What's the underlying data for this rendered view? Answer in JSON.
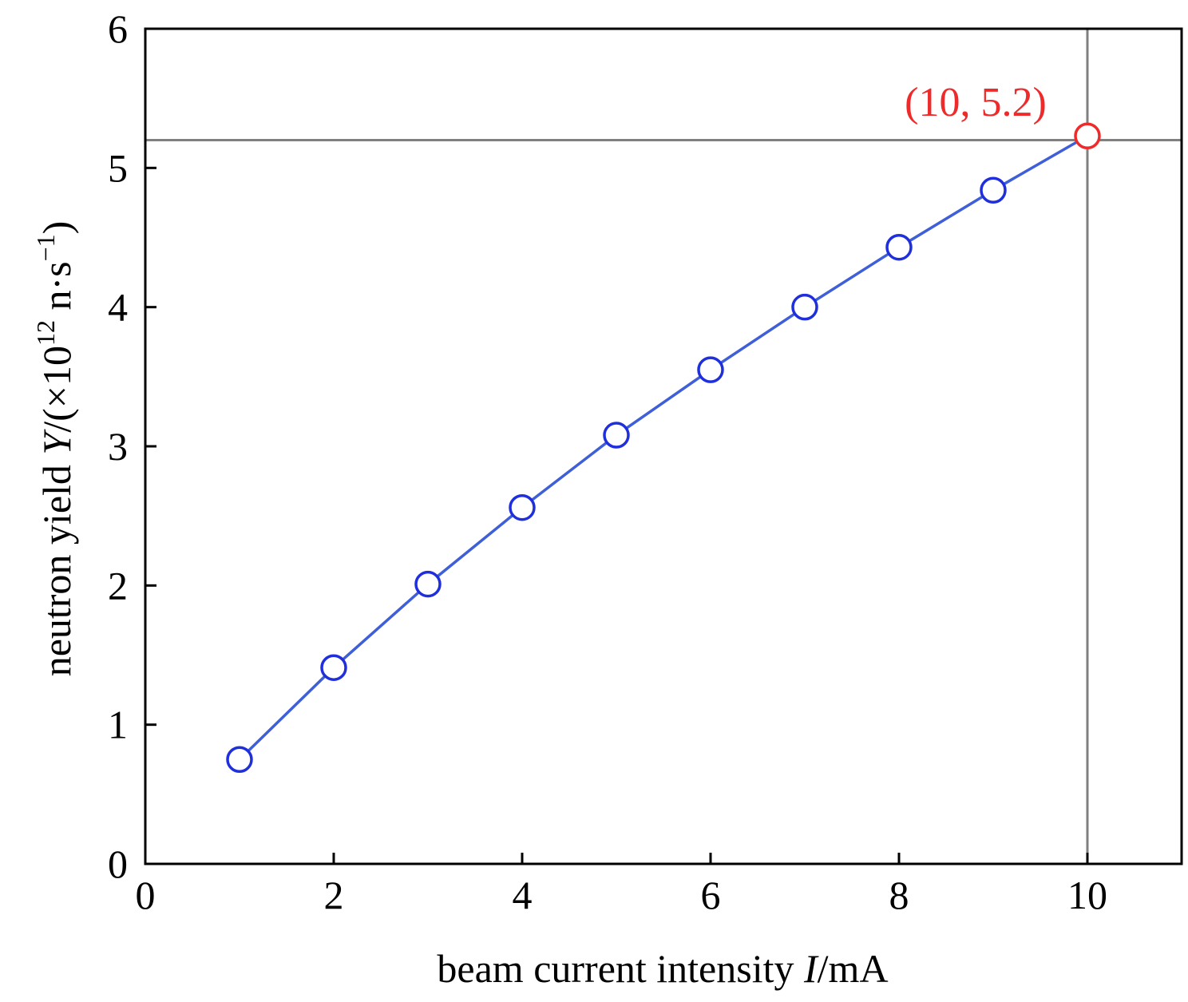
{
  "chart_data": {
    "type": "line",
    "title": "",
    "xlabel": {
      "prefix": "beam current intensity ",
      "symbol": "I",
      "suffix": "/mA"
    },
    "ylabel": {
      "prefix": "neutron yield ",
      "symbol": "Y",
      "suffix_a": "/(×10",
      "exponent": "12",
      "suffix_b": " n·s",
      "unit_exponent": "−1",
      "suffix_c": ")"
    },
    "xlim": [
      0,
      11
    ],
    "ylim": [
      0,
      6
    ],
    "xticks": [
      0,
      2,
      4,
      6,
      8,
      10
    ],
    "yticks": [
      0,
      1,
      2,
      3,
      4,
      5,
      6
    ],
    "grid": false,
    "series": [
      {
        "color": "#3f5fd8",
        "marker_color": "#1f2fdc",
        "x": [
          1,
          2,
          3,
          4,
          5,
          6,
          7,
          8,
          9,
          10
        ],
        "y": [
          0.75,
          1.41,
          2.01,
          2.56,
          3.08,
          3.55,
          4.0,
          4.43,
          4.84,
          5.23
        ]
      }
    ],
    "highlight": {
      "x": 10,
      "y": 5.2,
      "label": "(10, 5.2)",
      "color": "#ee2a2a",
      "reference_line_color": "#808080"
    }
  }
}
